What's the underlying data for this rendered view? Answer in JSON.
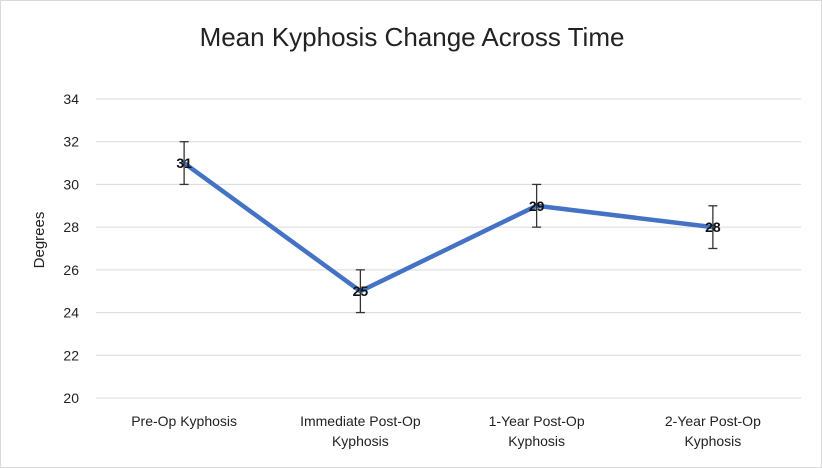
{
  "chart_data": {
    "type": "line",
    "title": "Mean Kyphosis Change Across Time",
    "xlabel": "",
    "ylabel": "Degrees",
    "ylim": [
      20,
      34
    ],
    "yticks": [
      20,
      22,
      24,
      26,
      28,
      30,
      32,
      34
    ],
    "grid": true,
    "legend": "none",
    "categories": [
      [
        "Pre-Op Kyphosis"
      ],
      [
        "Immediate Post-Op",
        "Kyphosis"
      ],
      [
        "1-Year Post-Op",
        "Kyphosis"
      ],
      [
        "2-Year Post-Op",
        "Kyphosis"
      ]
    ],
    "series": [
      {
        "values": [
          31,
          25,
          29,
          28
        ],
        "error": [
          1,
          1,
          1,
          1
        ],
        "data_labels": [
          "31",
          "25",
          "29",
          "28"
        ],
        "color": "#4472c4"
      }
    ]
  }
}
